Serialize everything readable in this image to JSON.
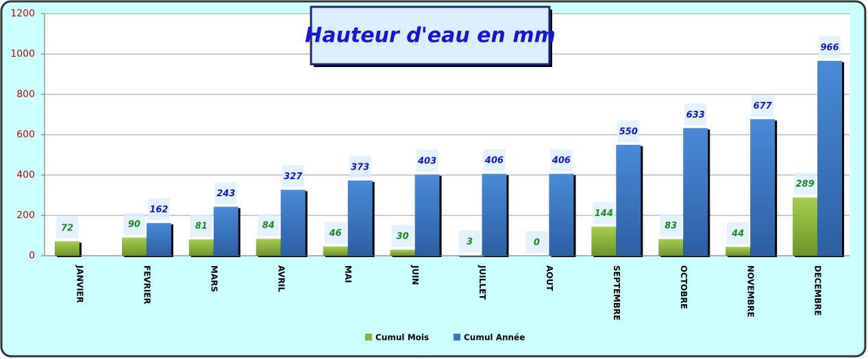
{
  "chart_data": {
    "type": "bar",
    "title": "Hauteur d'eau en mm",
    "categories": [
      "JANVIER",
      "FEVRIER",
      "MARS",
      "AVRIL",
      "MAI",
      "JUIN",
      "JUILLET",
      "AOUT",
      "SEPTEMBRE",
      "OCTOBRE",
      "NOVEMBRE",
      "DECEMBRE"
    ],
    "series": [
      {
        "name": "Cumul Mois",
        "color": "#8db33a",
        "values": [
          72,
          90,
          81,
          84,
          46,
          30,
          3,
          0,
          144,
          83,
          44,
          289
        ]
      },
      {
        "name": "Cumul Année",
        "color": "#3a78c4",
        "values": [
          null,
          162,
          243,
          327,
          373,
          403,
          406,
          406,
          550,
          633,
          677,
          966
        ]
      }
    ],
    "ylim": [
      0,
      1200
    ],
    "yticks": [
      0,
      200,
      400,
      600,
      800,
      1000,
      1200
    ],
    "grid": true,
    "legend": "bottom"
  }
}
